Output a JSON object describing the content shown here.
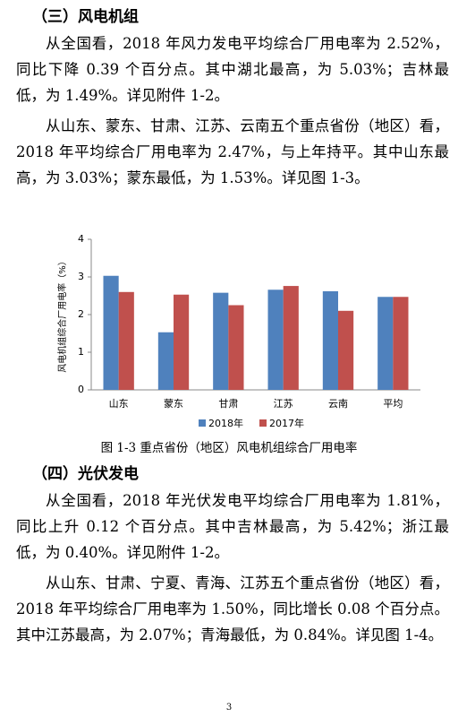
{
  "sections": [
    {
      "heading": "（三）风电机组",
      "paragraphs": [
        "从全国看，2018 年风力发电平均综合厂用电率为 2.52%，同比下降 0.39 个百分点。其中湖北最高，为 5.03%；吉林最低，为 1.49%。详见附件 1-2。",
        "从山东、蒙东、甘肃、江苏、云南五个重点省份（地区）看，2018 年平均综合厂用电率为 2.47%，与上年持平。其中山东最高，为 3.03%；蒙东最低，为 1.53%。详见图 1-3。"
      ]
    },
    {
      "heading": "（四）光伏发电",
      "paragraphs": [
        "从全国看，2018 年光伏发电平均综合厂用电率为 1.81%，同比上升 0.12 个百分点。其中吉林最高，为 5.42%；浙江最低，为 0.40%。详见附件 1-2。",
        "从山东、甘肃、宁夏、青海、江苏五个重点省份（地区）看，2018 年平均综合厂用电率为 1.50%，同比增长 0.08 个百分点。其中江苏最高，为 2.07%；青海最低，为 0.84%。详见图 1-4。"
      ]
    }
  ],
  "chart_data": {
    "type": "bar",
    "caption": "图 1-3 重点省份（地区）风电机组综合厂用电率",
    "y_label": "风电机组综合厂用电率（%）",
    "categories": [
      "山东",
      "蒙东",
      "甘肃",
      "江苏",
      "云南",
      "平均"
    ],
    "series": [
      {
        "name": "2018年",
        "color": "#4f81bd",
        "values": [
          3.03,
          1.53,
          2.58,
          2.66,
          2.62,
          2.47
        ]
      },
      {
        "name": "2017年",
        "color": "#c0504d",
        "values": [
          2.6,
          2.53,
          2.25,
          2.76,
          2.1,
          2.47
        ]
      }
    ],
    "ylim": [
      0,
      4
    ],
    "yticks": [
      0,
      1,
      2,
      3,
      4
    ],
    "legend": "bottom"
  },
  "page_number": "3"
}
